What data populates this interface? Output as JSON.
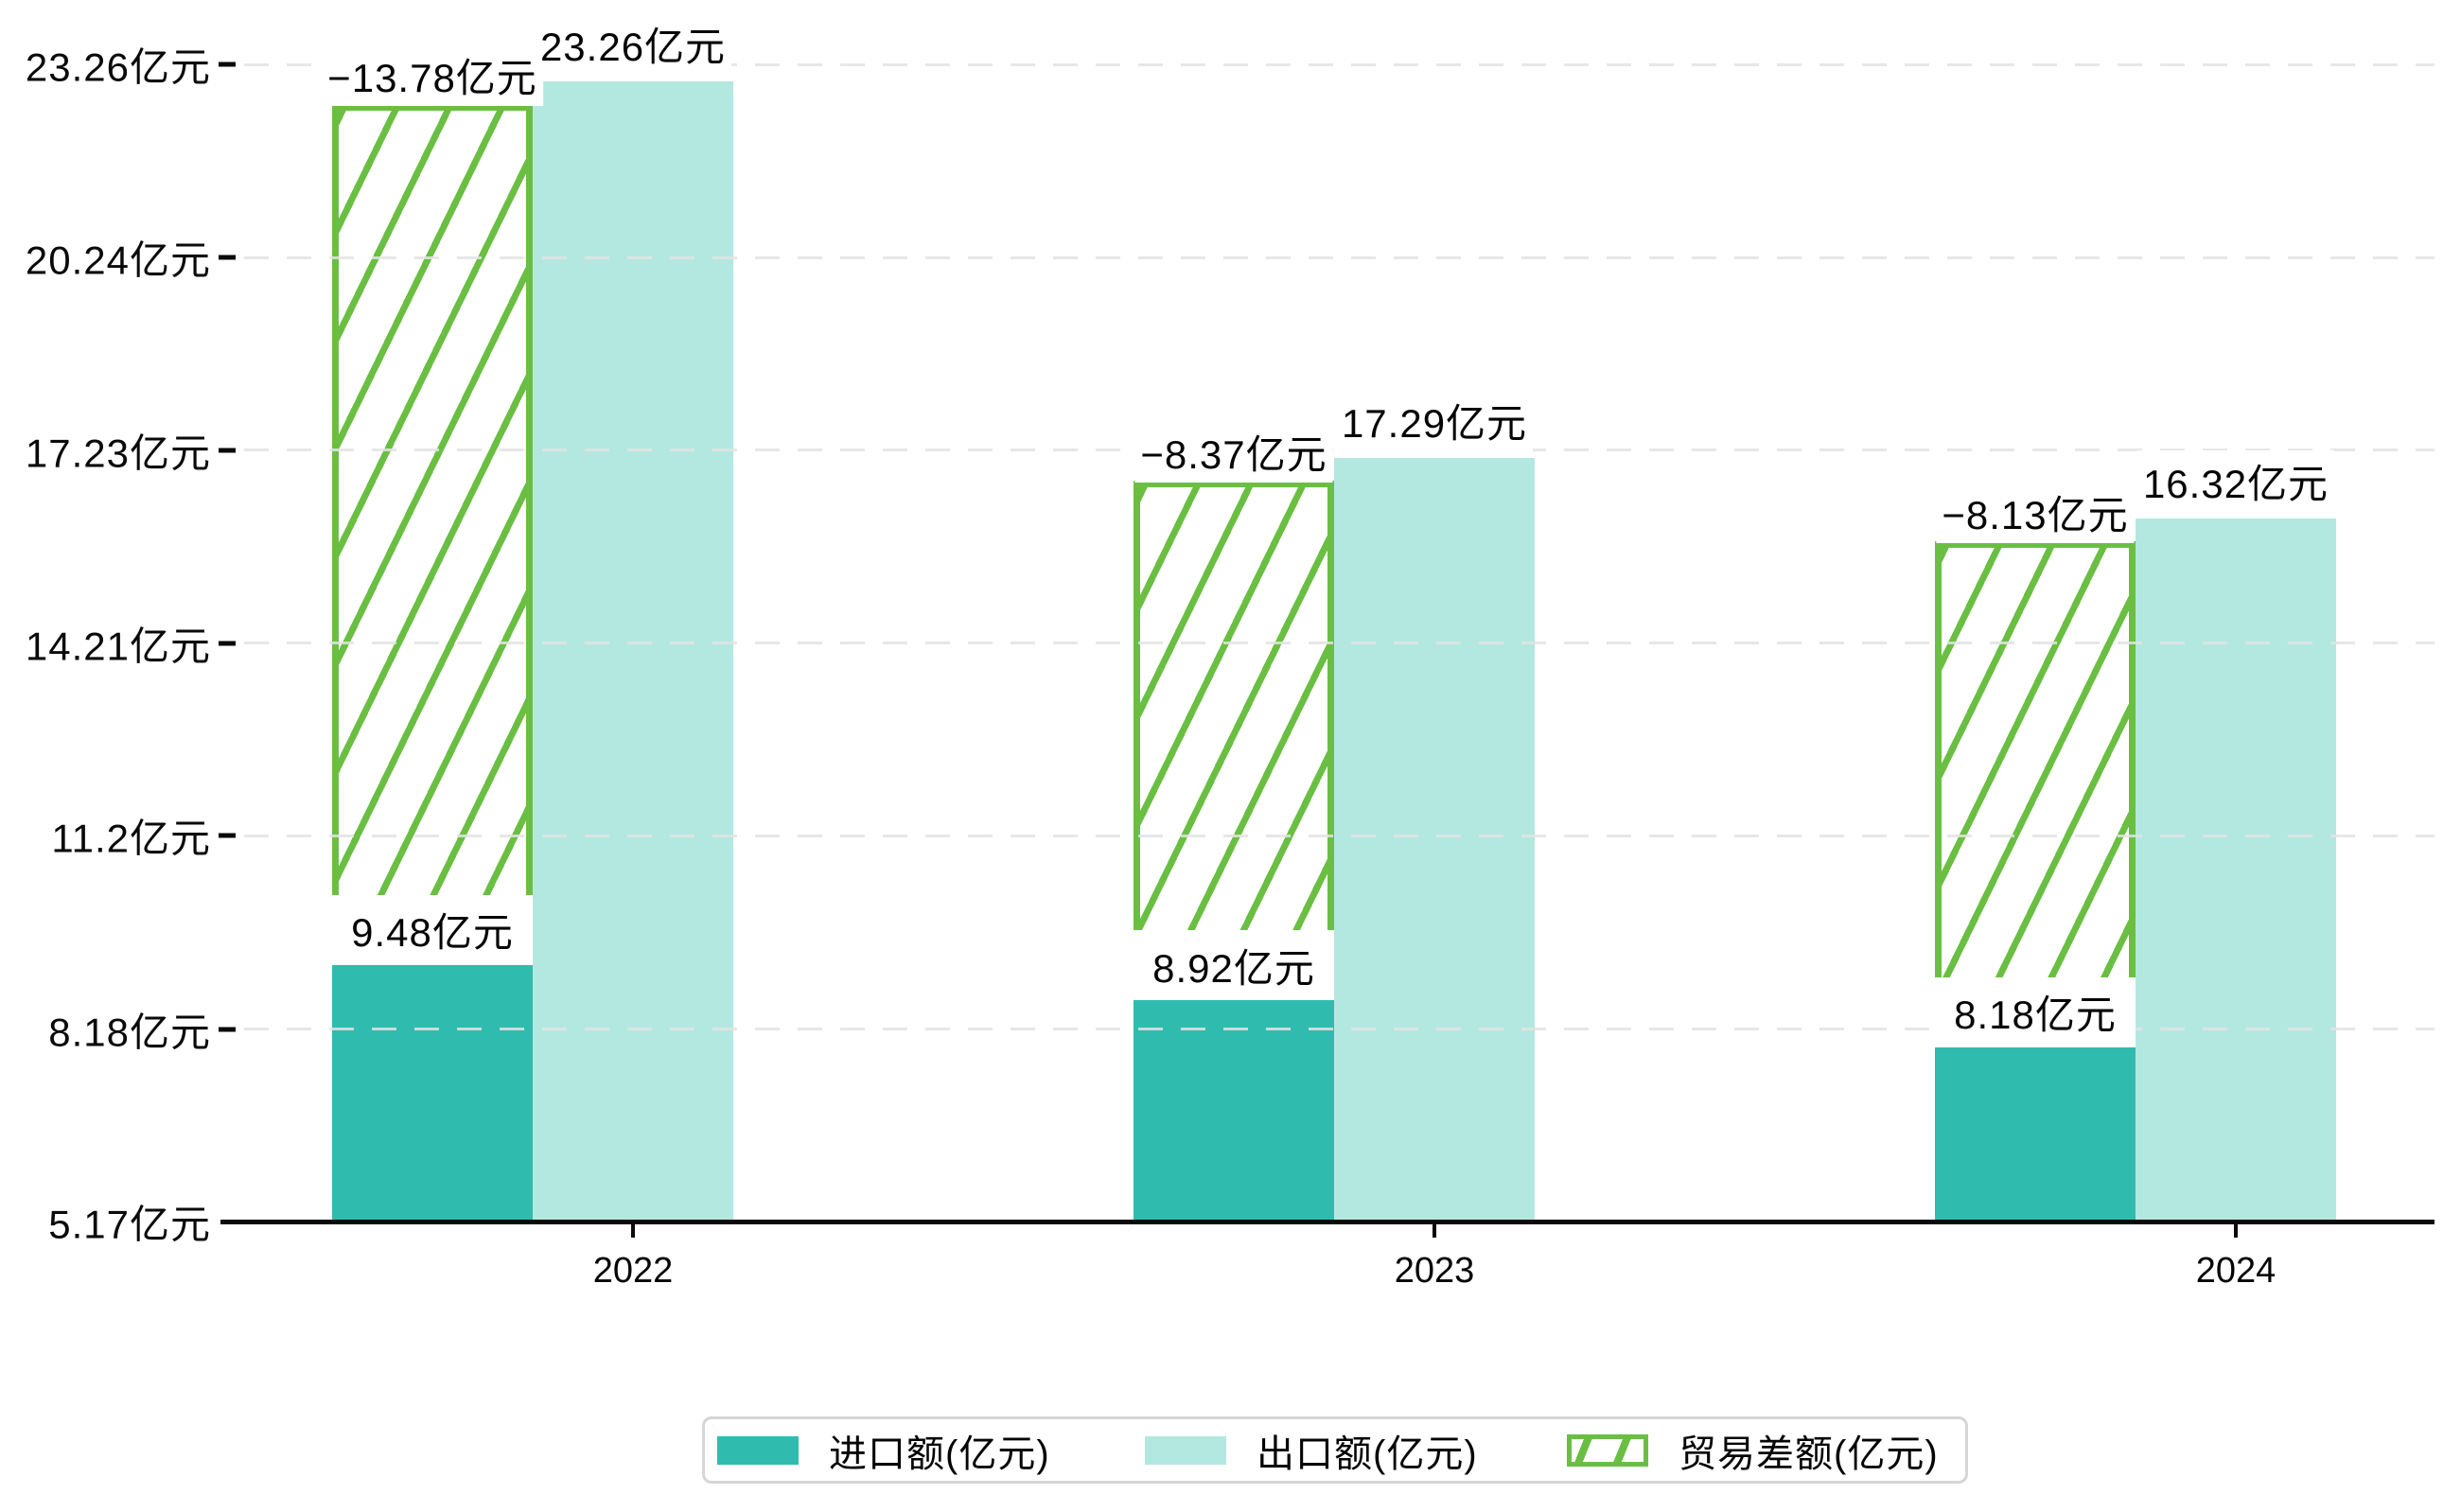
{
  "chart_data": {
    "type": "bar",
    "title": "",
    "categories": [
      "2022",
      "2023",
      "2024"
    ],
    "series": [
      {
        "name": "进口额(亿元)",
        "role": "import",
        "values": [
          9.48,
          8.92,
          8.18
        ],
        "labels": [
          "9.48亿元",
          "8.92亿元",
          "8.18亿元"
        ],
        "color": "#2fbcae"
      },
      {
        "name": "出口额(亿元)",
        "role": "export",
        "values": [
          23.26,
          17.29,
          16.32
        ],
        "labels": [
          "23.26亿元",
          "17.29亿元",
          "16.32亿元"
        ],
        "color": "#b3e8e0"
      },
      {
        "name": "贸易差额(亿元)",
        "role": "trade-balance",
        "values": [
          -13.78,
          -8.37,
          -8.13
        ],
        "labels": [
          "−13.78亿元",
          "−8.37亿元",
          "−8.13亿元"
        ],
        "color": "#6abf43",
        "pattern": "diagonal-hatch"
      }
    ],
    "y_axis": {
      "min": 5.17,
      "max": 23.26,
      "tick_values": [
        23.26,
        20.24,
        17.23,
        14.21,
        11.2,
        8.18,
        5.17
      ],
      "tick_labels": [
        "23.26亿元",
        "20.24亿元",
        "17.23亿元",
        "14.21亿元",
        "11.2亿元",
        "8.18亿元",
        "5.17亿元"
      ]
    },
    "x_axis": {
      "tick_labels": [
        "2022",
        "2023",
        "2024"
      ]
    },
    "grid": "dashed-horizontal",
    "legend_position": "bottom"
  },
  "colors": {
    "import": "#2fbcae",
    "export": "#b3e8e0",
    "balance_green": "#6abf43",
    "axis": "#0a0a0a",
    "gridline": "#e3e3e3",
    "label_text": "#050505",
    "legend_border": "#d6d6d6",
    "background": "#ffffff"
  }
}
